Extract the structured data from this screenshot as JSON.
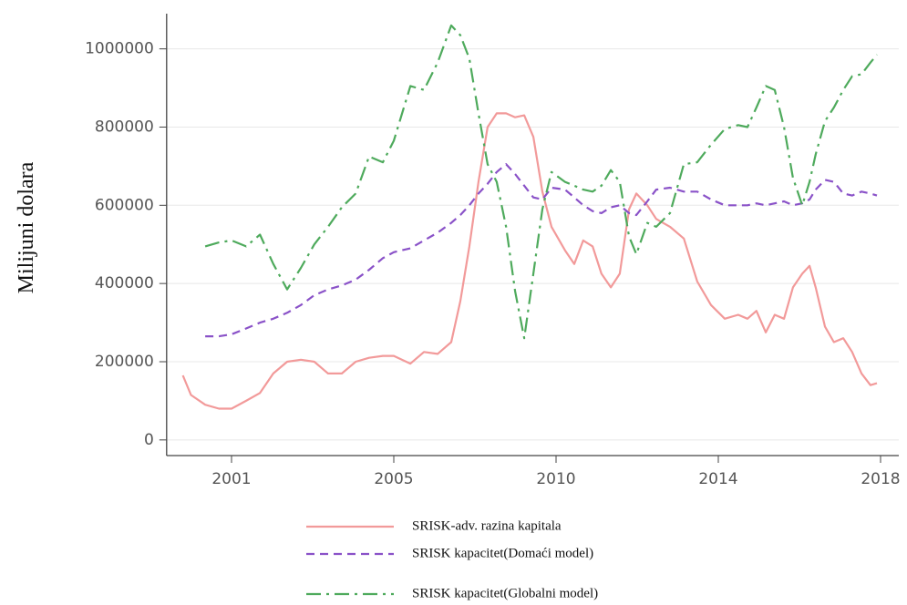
{
  "chart_data": {
    "type": "line",
    "y_label": "Milijuni dolara",
    "x": [
      1999.8,
      2000.0,
      2000.35,
      2000.69,
      2001.0,
      2001.36,
      2001.7,
      2002.03,
      2002.37,
      2002.71,
      2003.04,
      2003.38,
      2003.72,
      2004.06,
      2004.39,
      2004.73,
      2005.0,
      2005.51,
      2005.93,
      2006.35,
      2006.77,
      2007.05,
      2007.33,
      2007.61,
      2007.89,
      2008.17,
      2008.46,
      2008.74,
      2009.02,
      2009.3,
      2009.58,
      2009.86,
      2010.22,
      2010.45,
      2010.67,
      2010.9,
      2011.12,
      2011.35,
      2011.57,
      2011.8,
      2011.98,
      2012.25,
      2012.47,
      2012.81,
      2013.15,
      2013.48,
      2013.82,
      2014.16,
      2014.49,
      2014.72,
      2014.94,
      2015.17,
      2015.39,
      2015.62,
      2015.84,
      2016.07,
      2016.25,
      2016.4,
      2016.63,
      2016.85,
      2017.08,
      2017.3,
      2017.53,
      2017.75,
      2017.91
    ],
    "series": [
      {
        "name": "SRISK-adv. razina kapitala",
        "color": "#f29a9a",
        "dash": "solid",
        "values": [
          165000,
          115000,
          90000,
          80000,
          80000,
          100000,
          120000,
          170000,
          200000,
          205000,
          200000,
          170000,
          170000,
          200000,
          210000,
          215000,
          215000,
          195000,
          225000,
          220000,
          250000,
          355000,
          495000,
          660000,
          800000,
          835000,
          835000,
          825000,
          830000,
          775000,
          635000,
          545000,
          485000,
          450000,
          510000,
          495000,
          425000,
          390000,
          425000,
          590000,
          630000,
          600000,
          565000,
          545000,
          515000,
          405000,
          345000,
          310000,
          320000,
          310000,
          330000,
          275000,
          320000,
          310000,
          390000,
          425000,
          445000,
          390000,
          290000,
          250000,
          260000,
          225000,
          170000,
          140000,
          145000
        ]
      },
      {
        "name": "SRISK kapacitet(Domaći model)",
        "color": "#8a52c8",
        "dash": "dashed",
        "values": [
          null,
          null,
          265000,
          265000,
          270000,
          285000,
          300000,
          310000,
          325000,
          345000,
          370000,
          385000,
          395000,
          410000,
          435000,
          465000,
          480000,
          490000,
          510000,
          530000,
          555000,
          575000,
          600000,
          630000,
          655000,
          685000,
          705000,
          680000,
          650000,
          620000,
          615000,
          645000,
          640000,
          620000,
          600000,
          585000,
          580000,
          595000,
          600000,
          580000,
          575000,
          610000,
          640000,
          645000,
          635000,
          635000,
          615000,
          600000,
          600000,
          600000,
          605000,
          600000,
          605000,
          610000,
          600000,
          605000,
          615000,
          640000,
          665000,
          660000,
          630000,
          625000,
          635000,
          630000,
          625000
        ]
      },
      {
        "name": "SRISK kapacitet(Globalni model)",
        "color": "#4eaa5c",
        "dash": "dashdot",
        "values": [
          null,
          null,
          495000,
          505000,
          510000,
          495000,
          525000,
          450000,
          385000,
          440000,
          500000,
          545000,
          595000,
          630000,
          725000,
          710000,
          765000,
          905000,
          895000,
          965000,
          1060000,
          1035000,
          975000,
          835000,
          705000,
          660000,
          545000,
          380000,
          260000,
          425000,
          590000,
          685000,
          660000,
          650000,
          640000,
          635000,
          650000,
          690000,
          660000,
          520000,
          475000,
          555000,
          545000,
          580000,
          705000,
          710000,
          755000,
          795000,
          805000,
          800000,
          850000,
          905000,
          895000,
          800000,
          670000,
          600000,
          660000,
          730000,
          815000,
          850000,
          895000,
          930000,
          935000,
          965000,
          985000
        ]
      }
    ],
    "xlim": [
      1999.4,
      2018.45
    ],
    "xticks": [
      2001,
      2005,
      2010,
      2014,
      2018
    ],
    "ylim": [
      -40000,
      1090000
    ],
    "yticks": [
      0,
      200000,
      400000,
      600000,
      800000,
      1000000
    ],
    "grid": true,
    "legend": "bottom"
  }
}
